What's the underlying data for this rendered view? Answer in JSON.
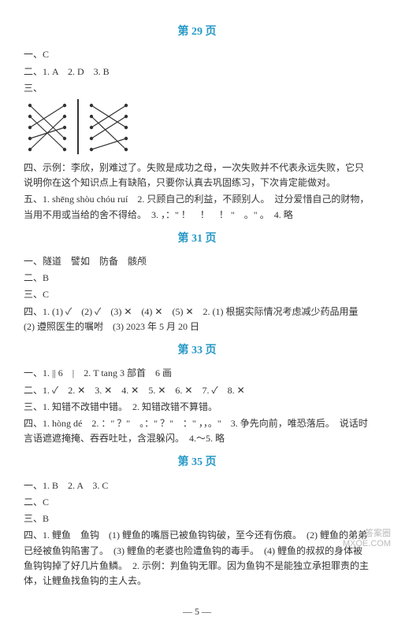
{
  "headings": {
    "p29": "第 29 页",
    "p31": "第 31 页",
    "p33": "第 33 页",
    "p35": "第 35 页"
  },
  "sec29": {
    "l1": "一、C",
    "l2": "二、1. A　2. D　3. B",
    "l3": "三、",
    "diagram": {
      "left": {
        "left_dots": [
          8,
          22,
          36,
          50,
          64
        ],
        "right_dots": [
          8,
          22,
          36,
          50,
          64
        ],
        "edges": [
          [
            0,
            3
          ],
          [
            1,
            4
          ],
          [
            2,
            0
          ],
          [
            3,
            2
          ],
          [
            4,
            1
          ]
        ],
        "color": "#333333"
      },
      "right": {
        "left_dots": [
          8,
          22,
          36,
          50,
          64
        ],
        "right_dots": [
          8,
          22,
          36,
          50,
          64
        ],
        "edges": [
          [
            0,
            2
          ],
          [
            1,
            4
          ],
          [
            2,
            0
          ],
          [
            3,
            1
          ],
          [
            4,
            3
          ]
        ],
        "color": "#333333"
      }
    },
    "l4": "四、示例：李欣，别难过了。失败是成功之母，一次失败并不代表永远失败，它只说明你在这个知识点上有缺陷，只要你认真去巩固练习，下次肯定能做对。",
    "l5": "五、1. shēng  shòu  chóu  ruí　2. 只顾自己的利益，不顾别人。　过分爱惜自己的财物，当用不用或当给的舍不得给。　3. ，：\" ！　！　！ \"　。\" 。　4. 略"
  },
  "sec31": {
    "l1": "一、隧道　譬如　防备　骸颅",
    "l2": "二、B",
    "l3": "三、C",
    "l4": "四、1. (1) ✓　(2) ✓　(3) ✕　(4) ✕　(5) ✕　2. (1) 根据实际情况考虑减少药品用量　(2) 遵照医生的嘱咐　(3) 2023 年 5 月 20 日"
  },
  "sec33": {
    "l1": "一、1. ||  6　|　2. T  tang  3 部首　6 画",
    "l2": "二、1. ✓　2. ✕　3. ✕　4. ✕　5. ✕　6. ✕　7. ✓　8. ✕",
    "l3": "三、1. 知错不改错中错。　2. 知错改错不算错。",
    "l4": "四、1. hòng  dé　2. ：\" ？\"　。：\" ？\"　：\" ，，。\"　3. 争先向前，唯恐落后。　说话时言语遮遮掩掩、吞吞吐吐，含混躲闪。　4.～5. 略"
  },
  "sec35": {
    "l1": "一、1. B　2. A　3. C",
    "l2": "二、C",
    "l3": "三、B",
    "l4": "四、1. 鲤鱼　鱼钩　(1) 鲤鱼的嘴唇已被鱼钩钩破，至今还有伤痕。　(2) 鲤鱼的弟弟已经被鱼钩陷害了。　(3) 鲤鱼的老婆也险遭鱼钩的毒手。　(4) 鲤鱼的叔叔的身体被鱼钩钩掉了好几片鱼鳞。　2. 示例：判鱼钩无罪。因为鱼钩不是能独立承担罪责的主体，让鲤鱼找鱼钩的主人去。"
  },
  "footer": "— 5 —",
  "watermark": {
    "l1": "答案圈",
    "l2": "MXQE.COM"
  }
}
